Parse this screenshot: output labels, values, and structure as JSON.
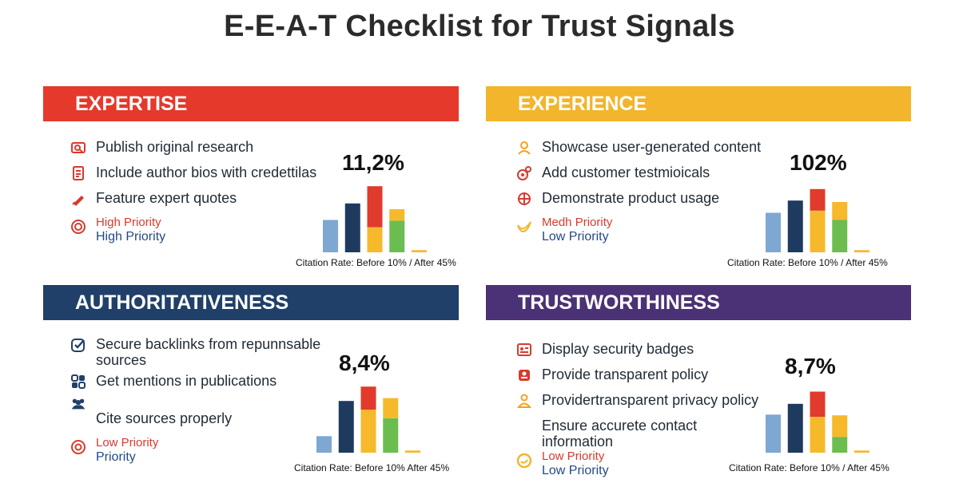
{
  "title": "E-E-A-T Checklist for Trust Signals",
  "colors": {
    "expertise": "#e5392c",
    "experience": "#f2b52c",
    "authoritativeness": "#20406a",
    "trustworthiness": "#4b3175",
    "bar_blue": "#7ea7d1",
    "bar_navy": "#1f3a5f",
    "bar_red": "#e03b2c",
    "bar_yellow": "#f6b92b",
    "bar_green": "#6cbd4f",
    "prio_red": "#d83a2e",
    "prio_navy": "#234a86"
  },
  "panels": {
    "expertise": {
      "heading": "EXPERTISE",
      "items": [
        {
          "icon": "research-icon",
          "text": "Publish original research"
        },
        {
          "icon": "author-bio-icon",
          "text": "Include author bios with credettilas"
        },
        {
          "icon": "quote-pen-icon",
          "text": "Feature expert quotes"
        }
      ],
      "priority_line1": "High Priority",
      "priority_line2": "High Priority",
      "percent": "11,2%",
      "caption": "Citation Rate: Before 10% / After 45%"
    },
    "experience": {
      "heading": "EXPERIENCE",
      "items": [
        {
          "icon": "user-icon",
          "text": "Showcase user-generated content"
        },
        {
          "icon": "testimonial-icon",
          "text": "Add customer testmioicals"
        },
        {
          "icon": "product-usage-icon",
          "text": "Demonstrate product usage"
        }
      ],
      "priority_line1": "Medh Priority",
      "priority_line2": "Low Priority",
      "percent": "102%",
      "caption": "Citation Rate: Before 10% / After 45%"
    },
    "authoritativeness": {
      "heading": "AUTHORITATIVENESS",
      "items": [
        {
          "icon": "check-badge-icon",
          "text": "Secure backlinks from repunnsable sources"
        },
        {
          "icon": "publications-icon",
          "text": "Get mentions in publications"
        },
        {
          "icon": "people-icon",
          "text": "Cite sources properly"
        }
      ],
      "priority_line1": "Low Priority",
      "priority_line2": "Priority",
      "percent": "8,4%",
      "caption": "Citation Rate: Before 10% After 45%"
    },
    "trustworthiness": {
      "heading": "TRUSTWORTHINESS",
      "items": [
        {
          "icon": "security-badge-icon",
          "text": "Display security badges"
        },
        {
          "icon": "policy-icon",
          "text": "Provide transparent policy"
        },
        {
          "icon": "privacy-user-icon",
          "text": "Providertransparent privacy policy"
        },
        {
          "icon": "contact-icon",
          "text": "Ensure accurete contact information"
        }
      ],
      "priority_line1": "Low Priority",
      "priority_line2": "Low Priority",
      "percent": "8,7%",
      "caption": "Citation Rate: Before 10% / After 45%"
    }
  },
  "chart_data": [
    {
      "type": "bar",
      "panel": "expertise",
      "ylim": [
        0,
        100
      ],
      "bars": [
        {
          "segments": [
            {
              "color": "#7ea7d1",
              "value": 45
            }
          ]
        },
        {
          "segments": [
            {
              "color": "#1f3a5f",
              "value": 68
            }
          ]
        },
        {
          "segments": [
            {
              "color": "#f6b92b",
              "value": 35
            },
            {
              "color": "#e03b2c",
              "value": 57
            }
          ]
        },
        {
          "segments": [
            {
              "color": "#6cbd4f",
              "value": 44
            },
            {
              "color": "#f6b92b",
              "value": 16
            }
          ]
        },
        {
          "segments": [
            {
              "color": "#f6b92b",
              "value": 3
            }
          ]
        }
      ]
    },
    {
      "type": "bar",
      "panel": "experience",
      "ylim": [
        0,
        100
      ],
      "bars": [
        {
          "segments": [
            {
              "color": "#7ea7d1",
              "value": 55
            }
          ]
        },
        {
          "segments": [
            {
              "color": "#1f3a5f",
              "value": 72
            }
          ]
        },
        {
          "segments": [
            {
              "color": "#f6b92b",
              "value": 58
            },
            {
              "color": "#e03b2c",
              "value": 30
            }
          ]
        },
        {
          "segments": [
            {
              "color": "#6cbd4f",
              "value": 45
            },
            {
              "color": "#f6b92b",
              "value": 25
            }
          ]
        },
        {
          "segments": [
            {
              "color": "#f6b92b",
              "value": 3
            }
          ]
        }
      ]
    },
    {
      "type": "bar",
      "panel": "authoritativeness",
      "ylim": [
        0,
        100
      ],
      "bars": [
        {
          "segments": [
            {
              "color": "#7ea7d1",
              "value": 23
            }
          ]
        },
        {
          "segments": [
            {
              "color": "#1f3a5f",
              "value": 72
            }
          ]
        },
        {
          "segments": [
            {
              "color": "#f6b92b",
              "value": 60
            },
            {
              "color": "#e03b2c",
              "value": 32
            }
          ]
        },
        {
          "segments": [
            {
              "color": "#6cbd4f",
              "value": 48
            },
            {
              "color": "#f6b92b",
              "value": 28
            }
          ]
        },
        {
          "segments": [
            {
              "color": "#f6b92b",
              "value": 3
            }
          ]
        }
      ]
    },
    {
      "type": "bar",
      "panel": "trustworthiness",
      "ylim": [
        0,
        100
      ],
      "bars": [
        {
          "segments": [
            {
              "color": "#7ea7d1",
              "value": 53
            }
          ]
        },
        {
          "segments": [
            {
              "color": "#1f3a5f",
              "value": 68
            }
          ]
        },
        {
          "segments": [
            {
              "color": "#f6b92b",
              "value": 50
            },
            {
              "color": "#e03b2c",
              "value": 35
            }
          ]
        },
        {
          "segments": [
            {
              "color": "#6cbd4f",
              "value": 22
            },
            {
              "color": "#f6b92b",
              "value": 30
            }
          ]
        },
        {
          "segments": [
            {
              "color": "#f6b92b",
              "value": 3
            }
          ]
        }
      ]
    }
  ]
}
